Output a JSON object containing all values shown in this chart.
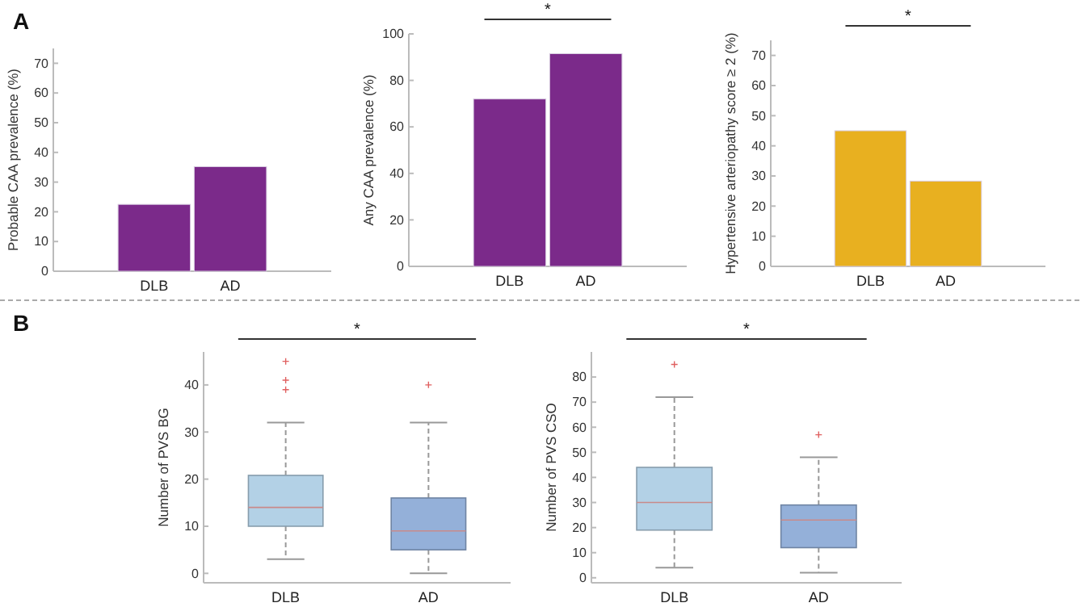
{
  "chart_data": [
    {
      "type": "bar",
      "ylabel": "Probable CAA prevalence (%)",
      "categories": [
        "DLB",
        "AD"
      ],
      "values": [
        22.5,
        35.2
      ],
      "color": "#7b2a8a",
      "ylim": [
        0,
        75
      ],
      "yticks": [
        0,
        10,
        20,
        30,
        40,
        50,
        60,
        70
      ],
      "annotations": [
        "A"
      ]
    },
    {
      "type": "bar",
      "ylabel": "Any CAA prevalence (%)",
      "categories": [
        "DLB",
        "AD"
      ],
      "values": [
        72,
        91.5
      ],
      "color": "#7b2a8a",
      "ylim": [
        0,
        100
      ],
      "yticks": [
        0,
        20,
        40,
        60,
        80,
        100
      ],
      "annotations": [
        "*"
      ]
    },
    {
      "type": "bar",
      "ylabel": "Hypertensive arteriopathy score ≥ 2 (%)",
      "categories": [
        "DLB",
        "AD"
      ],
      "values": [
        45,
        28.3
      ],
      "color": "#e8b020",
      "ylim": [
        0,
        75
      ],
      "yticks": [
        0,
        10,
        20,
        30,
        40,
        50,
        60,
        70
      ],
      "annotations": [
        "*"
      ]
    },
    {
      "type": "box",
      "ylabel": "Number of PVS BG",
      "categories": [
        "DLB",
        "AD"
      ],
      "colors": [
        "#b3d1e6",
        "#94b0d9"
      ],
      "ylim": [
        -2,
        47
      ],
      "yticks": [
        0,
        10,
        20,
        30,
        40
      ],
      "annotations": [
        "B",
        "*"
      ],
      "boxes": [
        {
          "low": 3,
          "q1": 10,
          "median": 14,
          "q3": 20.8,
          "high": 32,
          "outliers": [
            39,
            41,
            45
          ]
        },
        {
          "low": 0,
          "q1": 5,
          "median": 9,
          "q3": 16,
          "high": 32,
          "outliers": [
            40
          ]
        }
      ]
    },
    {
      "type": "box",
      "ylabel": "Number of PVS CSO",
      "categories": [
        "DLB",
        "AD"
      ],
      "colors": [
        "#b3d1e6",
        "#94b0d9"
      ],
      "ylim": [
        -2,
        90
      ],
      "yticks": [
        0,
        10,
        20,
        30,
        40,
        50,
        60,
        70,
        80
      ],
      "annotations": [
        "*"
      ],
      "boxes": [
        {
          "low": 4,
          "q1": 19,
          "median": 30,
          "q3": 44,
          "high": 72,
          "outliers": [
            85
          ]
        },
        {
          "low": 2,
          "q1": 12,
          "median": 23,
          "q3": 29,
          "high": 48,
          "outliers": [
            57
          ]
        }
      ]
    }
  ]
}
